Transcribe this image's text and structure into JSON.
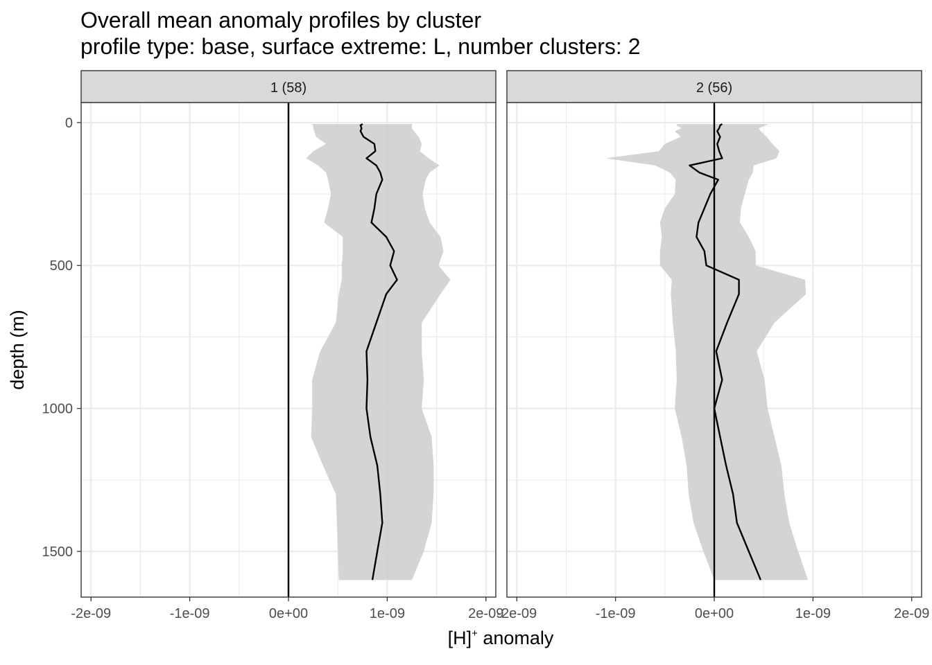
{
  "chart_data": {
    "type": "line",
    "title": "Overall mean anomaly profiles by cluster",
    "subtitle": "profile type: base, surface extreme: L, number clusters: 2",
    "xlabel_main": "[H]",
    "xlabel_sup": "+",
    "xlabel_rest": " anomaly",
    "ylabel": "depth (m)",
    "xlim": [
      -2.1e-09,
      2.1e-09
    ],
    "ylim": [
      1660,
      -70
    ],
    "x_ticks": [
      -2e-09,
      -1e-09,
      0,
      1e-09,
      2e-09
    ],
    "x_tick_labels": [
      "-2e-09",
      "-1e-09",
      "0e+00",
      "1e-09",
      "2e-09"
    ],
    "y_ticks": [
      0,
      500,
      1000,
      1500
    ],
    "y_tick_labels": [
      "0",
      "500",
      "1000",
      "1500"
    ],
    "reference_line_x": 0,
    "panels": [
      {
        "label": "1 (58)",
        "depth": [
          5,
          10,
          20,
          30,
          50,
          75,
          100,
          125,
          150,
          175,
          200,
          250,
          300,
          350,
          400,
          450,
          500,
          550,
          600,
          700,
          800,
          900,
          1000,
          1100,
          1200,
          1300,
          1400,
          1500,
          1600
        ],
        "mean": [
          7.5e-10,
          7.3e-10,
          7.4e-10,
          7.3e-10,
          7.6e-10,
          8.7e-10,
          8.8e-10,
          7.9e-10,
          8.9e-10,
          9.3e-10,
          9.5e-10,
          8.9e-10,
          8.7e-10,
          8.4e-10,
          9.9e-10,
          1.07e-09,
          1.03e-09,
          1.1e-09,
          9.9e-10,
          8.9e-10,
          7.9e-10,
          8e-10,
          7.9e-10,
          8.3e-10,
          9e-10,
          9.3e-10,
          9.5e-10,
          9e-10,
          8.5e-10
        ],
        "lower": [
          2.3e-10,
          2.5e-10,
          2.5e-10,
          2.6e-10,
          2.8e-10,
          3.8e-10,
          2.5e-10,
          1.8e-10,
          3e-10,
          3.8e-10,
          4e-10,
          4.3e-10,
          4e-10,
          3.6e-10,
          5.5e-10,
          5.5e-10,
          5.4e-10,
          5.4e-10,
          5.1e-10,
          4.8e-10,
          3.2e-10,
          2.4e-10,
          2.4e-10,
          2.3e-10,
          3.5e-10,
          4.8e-10,
          4.9e-10,
          5e-10,
          5.1e-10
        ],
        "upper": [
          1.25e-09,
          1.25e-09,
          1.25e-09,
          1.27e-09,
          1.32e-09,
          1.35e-09,
          1.33e-09,
          1.42e-09,
          1.53e-09,
          1.43e-09,
          1.39e-09,
          1.36e-09,
          1.38e-09,
          1.43e-09,
          1.54e-09,
          1.57e-09,
          1.52e-09,
          1.64e-09,
          1.54e-09,
          1.35e-09,
          1.35e-09,
          1.37e-09,
          1.35e-09,
          1.45e-09,
          1.47e-09,
          1.47e-09,
          1.45e-09,
          1.37e-09,
          1.25e-09
        ]
      },
      {
        "label": "2 (56)",
        "depth": [
          5,
          10,
          20,
          30,
          50,
          75,
          100,
          125,
          150,
          175,
          200,
          250,
          300,
          350,
          400,
          450,
          500,
          550,
          600,
          700,
          800,
          900,
          1000,
          1100,
          1200,
          1300,
          1400,
          1500,
          1600
        ],
        "mean": [
          8e-11,
          6e-11,
          5e-11,
          3e-11,
          6e-11,
          3e-11,
          5e-11,
          8e-11,
          -2.5e-10,
          -1.5e-10,
          4e-11,
          -4e-11,
          -1e-10,
          -1.6e-10,
          -1.8e-10,
          -1e-10,
          -8e-11,
          2.5e-10,
          2.5e-10,
          1.3e-10,
          2e-11,
          8e-11,
          0,
          6e-11,
          1.2e-10,
          1.9e-10,
          2.3e-10,
          3.5e-10,
          4.7e-10
        ],
        "lower": [
          -3.8e-10,
          -3.8e-10,
          -3.3e-10,
          -4e-10,
          -3.4e-10,
          -5e-10,
          -5.6e-10,
          -1.1e-09,
          -6e-10,
          -4.5e-10,
          -3.9e-10,
          -4e-10,
          -5e-10,
          -5.5e-10,
          -5.3e-10,
          -5.5e-10,
          -5.5e-10,
          -4.3e-10,
          -4.4e-10,
          -4.2e-10,
          -3.9e-10,
          -3.8e-10,
          -4e-10,
          -3.3e-10,
          -2.8e-10,
          -2.6e-10,
          -2.1e-10,
          -1.1e-10,
          0
        ],
        "upper": [
          5.5e-10,
          5.2e-10,
          4.5e-10,
          4.7e-10,
          5.3e-10,
          5.9e-10,
          6.6e-10,
          6.3e-10,
          4e-10,
          3.9e-10,
          3.5e-10,
          3.1e-10,
          2.7e-10,
          2.6e-10,
          3.5e-10,
          4.2e-10,
          4.2e-10,
          9.2e-10,
          9.3e-10,
          6.1e-10,
          4.3e-10,
          5.1e-10,
          5.4e-10,
          6.1e-10,
          6.8e-10,
          7.1e-10,
          7.6e-10,
          8.5e-10,
          9.5e-10
        ]
      }
    ]
  }
}
